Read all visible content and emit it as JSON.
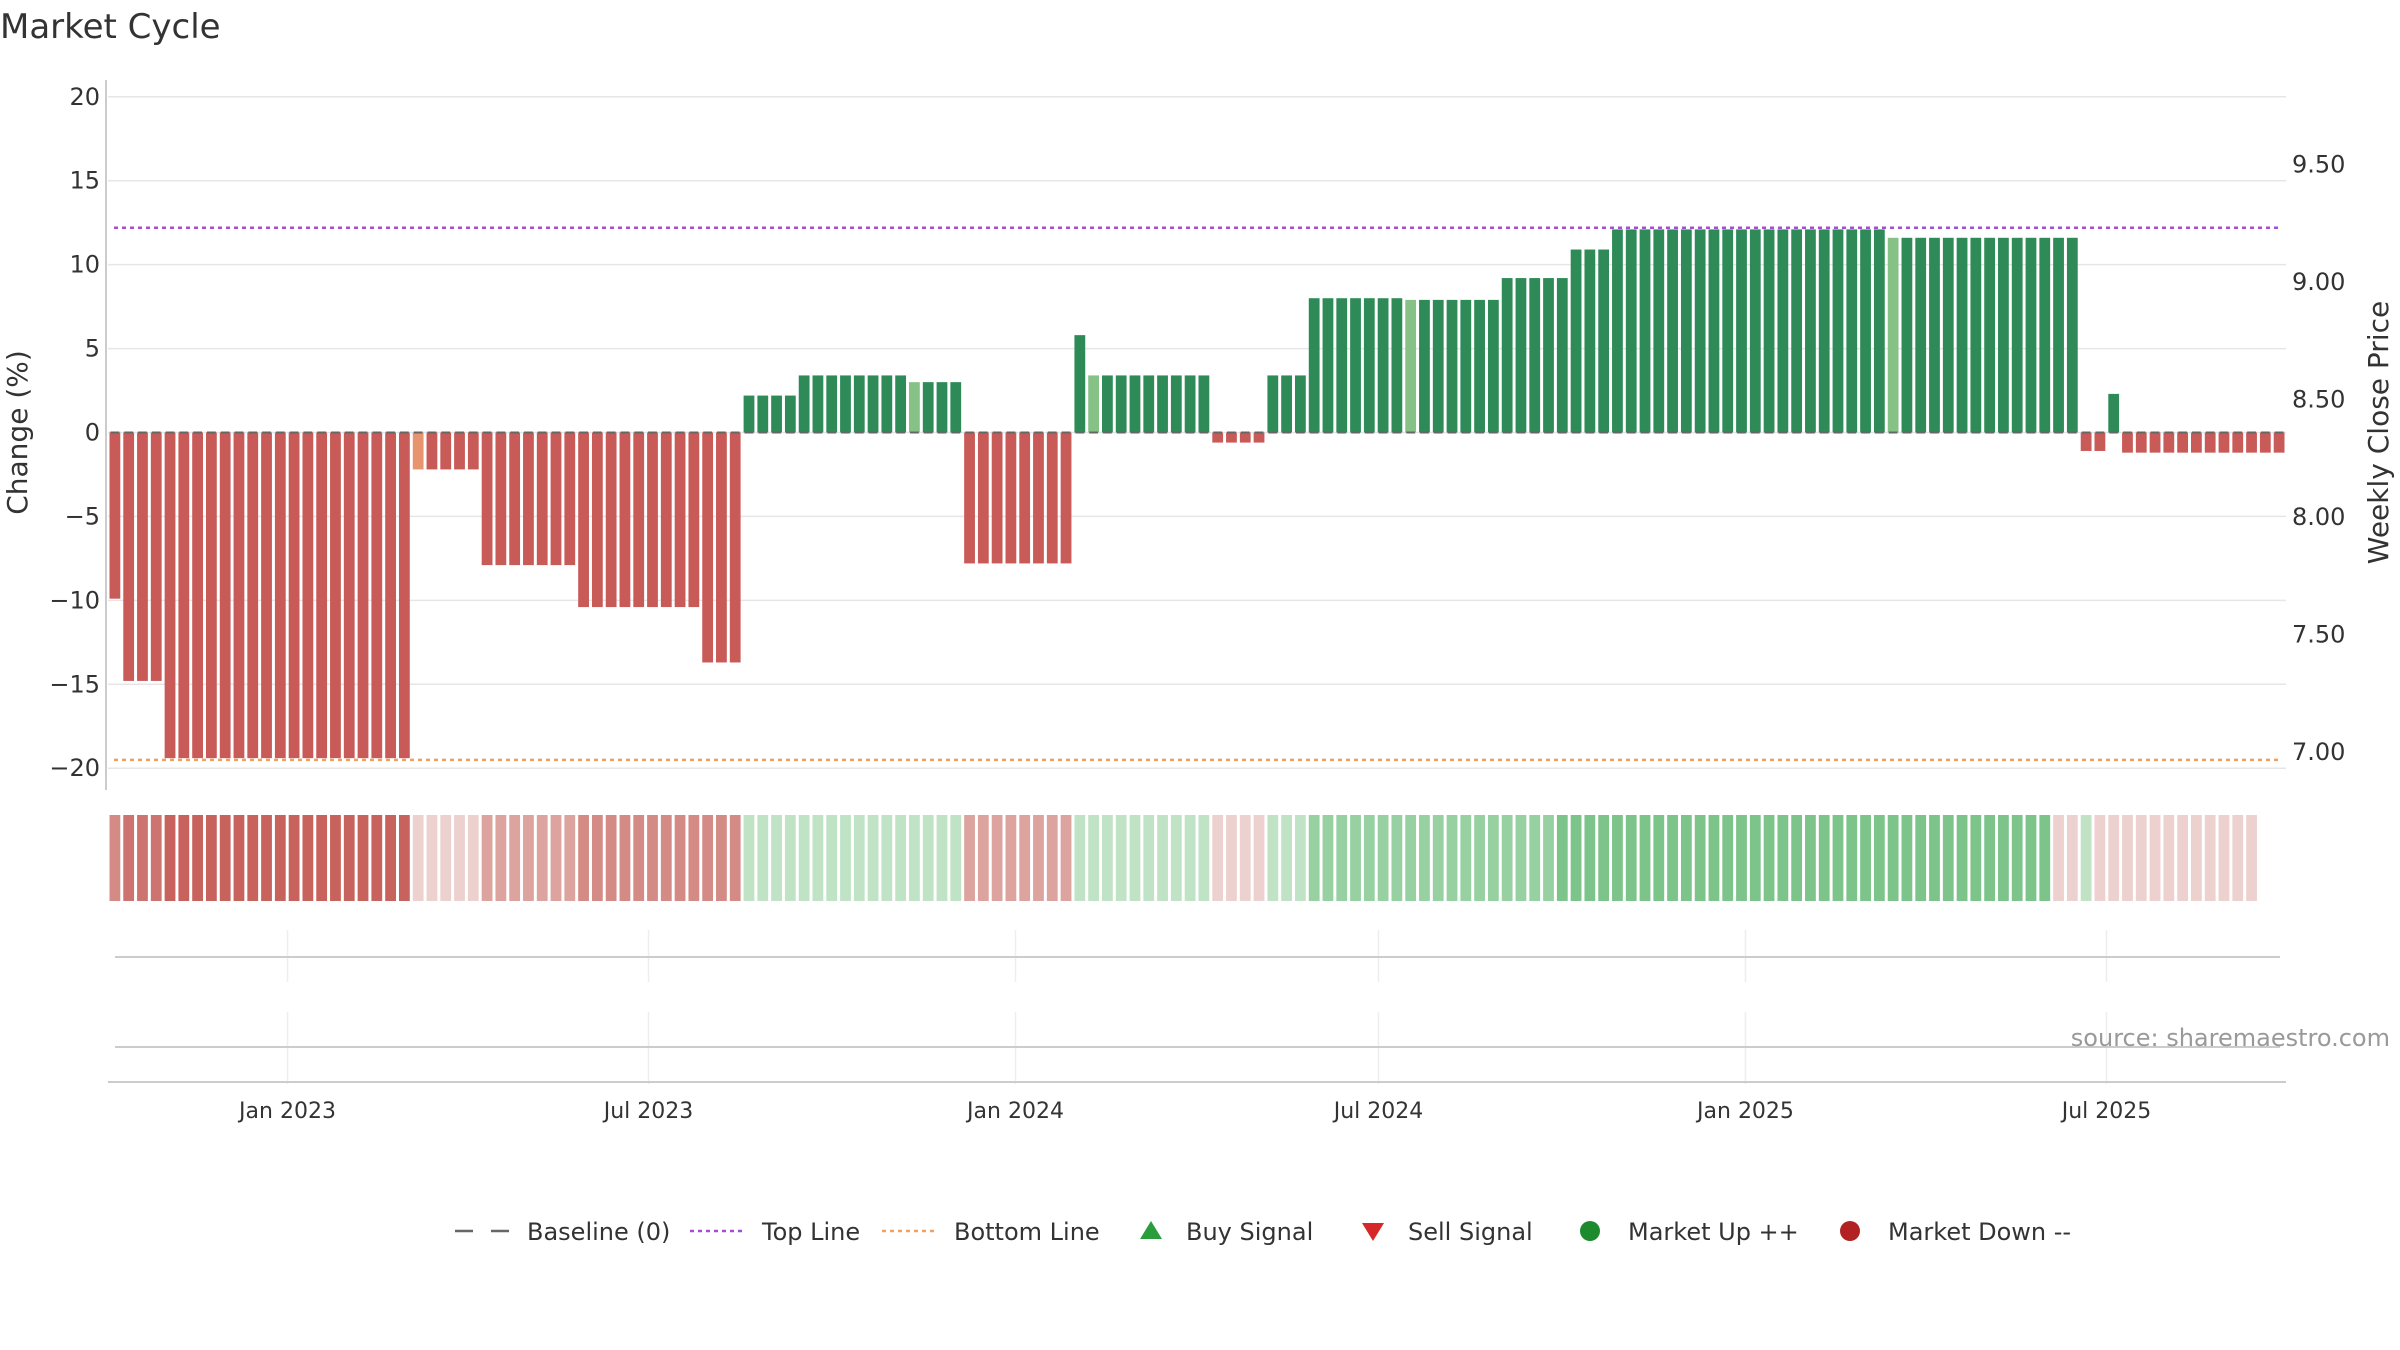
{
  "title": "Market Cycle",
  "source": "source: sharemaestro.com",
  "chart_data": {
    "type": "bar",
    "x_start": "2022-10-03",
    "x_interval": "weekly",
    "date_range": [
      "2022-10-03",
      "2025-09-22"
    ],
    "y_left": {
      "label": "Change (%)",
      "lim": [
        -21,
        21
      ],
      "ticks": [
        20,
        15,
        10,
        5,
        0,
        -5,
        -10,
        -15,
        -20
      ],
      "tick_labels": [
        "20",
        "15",
        "10",
        "5",
        "0",
        "−5",
        "−10",
        "−15",
        "−20"
      ]
    },
    "y_right": {
      "label": "Weekly Close Price",
      "lim": [
        6.86,
        9.86
      ],
      "ticks": [
        9.5,
        9.0,
        8.5,
        8.0,
        7.5,
        7.0
      ],
      "tick_labels": [
        "9.50",
        "9.00",
        "8.50",
        "8.00",
        "7.50",
        "7.00"
      ]
    },
    "x_ticks": [
      {
        "date": "2023-01-01",
        "label": "Jan 2023"
      },
      {
        "date": "2023-07-01",
        "label": "Jul 2023"
      },
      {
        "date": "2024-01-01",
        "label": "Jan 2024"
      },
      {
        "date": "2024-07-01",
        "label": "Jul 2024"
      },
      {
        "date": "2025-01-01",
        "label": "Jan 2025"
      },
      {
        "date": "2025-07-01",
        "label": "Jul 2025"
      }
    ],
    "top_line": 12.2,
    "bottom_line": -19.5,
    "baseline": 0,
    "grid": true,
    "legend_position": "bottom-center",
    "segments": [
      {
        "count": 1,
        "value": -9.9,
        "tone": "red"
      },
      {
        "count": 3,
        "value": -14.8,
        "tone": "red"
      },
      {
        "count": 18,
        "value": -19.4,
        "tone": "red"
      },
      {
        "count": 1,
        "value": -2.2,
        "tone": "orange"
      },
      {
        "count": 4,
        "value": -2.2,
        "tone": "red"
      },
      {
        "count": 7,
        "value": -7.9,
        "tone": "red"
      },
      {
        "count": 9,
        "value": -10.4,
        "tone": "red"
      },
      {
        "count": 3,
        "value": -13.7,
        "tone": "red"
      },
      {
        "count": 4,
        "value": 2.2,
        "tone": "green"
      },
      {
        "count": 8,
        "value": 3.4,
        "tone": "green"
      },
      {
        "count": 1,
        "value": 3.0,
        "tone": "lightgreen"
      },
      {
        "count": 3,
        "value": 3.0,
        "tone": "green"
      },
      {
        "count": 8,
        "value": -7.8,
        "tone": "red"
      },
      {
        "count": 1,
        "value": 5.8,
        "tone": "green"
      },
      {
        "count": 1,
        "value": 3.4,
        "tone": "lightgreen"
      },
      {
        "count": 8,
        "value": 3.4,
        "tone": "green"
      },
      {
        "count": 4,
        "value": -0.6,
        "tone": "red"
      },
      {
        "count": 3,
        "value": 3.4,
        "tone": "green"
      },
      {
        "count": 7,
        "value": 8.0,
        "tone": "green"
      },
      {
        "count": 1,
        "value": 7.9,
        "tone": "lightgreen"
      },
      {
        "count": 6,
        "value": 7.9,
        "tone": "green"
      },
      {
        "count": 5,
        "value": 9.2,
        "tone": "green"
      },
      {
        "count": 3,
        "value": 10.9,
        "tone": "green"
      },
      {
        "count": 20,
        "value": 12.1,
        "tone": "green"
      },
      {
        "count": 1,
        "value": 11.6,
        "tone": "lightgreen"
      },
      {
        "count": 13,
        "value": 11.6,
        "tone": "green"
      },
      {
        "count": 2,
        "value": -1.1,
        "tone": "red"
      },
      {
        "count": 1,
        "value": 2.3,
        "tone": "green"
      },
      {
        "count": 12,
        "value": -1.2,
        "tone": "red"
      }
    ],
    "strip": [
      {
        "count": 1,
        "tone": "r2"
      },
      {
        "count": 3,
        "tone": "r1"
      },
      {
        "count": 18,
        "tone": "r0"
      },
      {
        "count": 5,
        "tone": "r4"
      },
      {
        "count": 7,
        "tone": "r3"
      },
      {
        "count": 12,
        "tone": "r2"
      },
      {
        "count": 16,
        "tone": "g3"
      },
      {
        "count": 8,
        "tone": "r3"
      },
      {
        "count": 10,
        "tone": "g3"
      },
      {
        "count": 4,
        "tone": "r4"
      },
      {
        "count": 3,
        "tone": "g3"
      },
      {
        "count": 18,
        "tone": "g2"
      },
      {
        "count": 36,
        "tone": "g1"
      },
      {
        "count": 2,
        "tone": "r4"
      },
      {
        "count": 1,
        "tone": "g3"
      },
      {
        "count": 12,
        "tone": "r4"
      }
    ]
  },
  "legend": [
    {
      "label": "Baseline (0)",
      "kind": "dashed",
      "color": "#666666"
    },
    {
      "label": "Top Line",
      "kind": "dotted",
      "color": "#a64dd8"
    },
    {
      "label": "Bottom Line",
      "kind": "dotted",
      "color": "#f0a060"
    },
    {
      "label": "Buy Signal",
      "kind": "triangle-up",
      "color": "#2a9d3c"
    },
    {
      "label": "Sell Signal",
      "kind": "triangle-down",
      "color": "#d62828"
    },
    {
      "label": "Market Up ++",
      "kind": "dot",
      "color": "#1e8a2e"
    },
    {
      "label": "Market Down --",
      "kind": "dot",
      "color": "#b22222"
    }
  ],
  "colors": {
    "red": "#c85a58",
    "orange": "#e8946e",
    "green": "#2e8b57",
    "lightgreen": "#86c186",
    "r0": "#c8625c",
    "r1": "#cd7470",
    "r2": "#d58b85",
    "r3": "#dda39e",
    "r4": "#edd1ce",
    "g1": "#7dc48a",
    "g2": "#97d1a2",
    "g3": "#bfe3c4",
    "grid": "#e6e6e6",
    "axis": "#cccccc",
    "top_line": "#a64dd8",
    "bottom_line": "#f0a060"
  }
}
